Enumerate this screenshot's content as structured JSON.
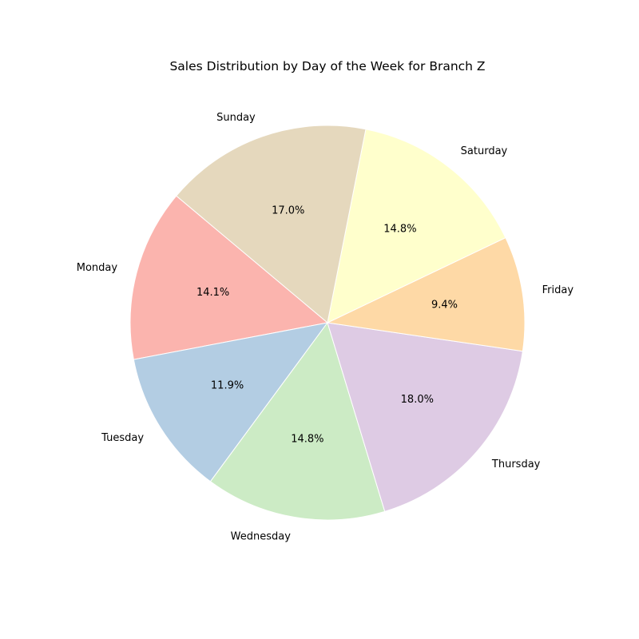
{
  "chart_data": {
    "type": "pie",
    "title": "Sales Distribution by Day of the Week for Branch Z",
    "start_angle_deg": 140,
    "direction": "counterclockwise",
    "slices": [
      {
        "label": "Monday",
        "value": 14.1,
        "pct_label": "14.1%",
        "color": "#fbb4ae"
      },
      {
        "label": "Tuesday",
        "value": 11.9,
        "pct_label": "11.9%",
        "color": "#b3cde3"
      },
      {
        "label": "Wednesday",
        "value": 14.8,
        "pct_label": "14.8%",
        "color": "#ccebc5"
      },
      {
        "label": "Thursday",
        "value": 18.0,
        "pct_label": "18.0%",
        "color": "#decbe4"
      },
      {
        "label": "Friday",
        "value": 9.4,
        "pct_label": "9.4%",
        "color": "#fed9a6"
      },
      {
        "label": "Saturday",
        "value": 14.8,
        "pct_label": "14.8%",
        "color": "#ffffcc"
      },
      {
        "label": "Sunday",
        "value": 17.0,
        "pct_label": "17.0%",
        "color": "#e5d8bd"
      }
    ]
  }
}
